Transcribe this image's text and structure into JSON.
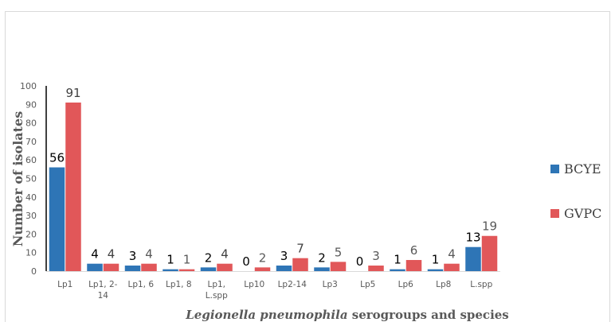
{
  "chart_data": {
    "type": "bar",
    "categories": [
      "Lp1",
      "Lp1, 2-14",
      "Lp1, 6",
      "Lp1, 8",
      "Lp1, L.spp",
      "Lp10",
      "Lp2-14",
      "Lp3",
      "Lp5",
      "Lp6",
      "Lp8",
      "L.spp"
    ],
    "category_lines": [
      [
        "Lp1"
      ],
      [
        "Lp1,  2-",
        "14"
      ],
      [
        "Lp1, 6"
      ],
      [
        "Lp1, 8"
      ],
      [
        "Lp1,",
        "L.spp"
      ],
      [
        "Lp10"
      ],
      [
        "Lp2-14"
      ],
      [
        "Lp3"
      ],
      [
        "Lp5"
      ],
      [
        "Lp6"
      ],
      [
        "Lp8"
      ],
      [
        "L.spp"
      ]
    ],
    "series": [
      {
        "name": "BCYE",
        "color": "#2e75b6",
        "values": [
          56,
          4,
          3,
          1,
          2,
          0,
          3,
          2,
          0,
          1,
          1,
          13
        ]
      },
      {
        "name": "GVPC",
        "color": "#e15759",
        "values": [
          91,
          4,
          4,
          1,
          4,
          2,
          7,
          5,
          3,
          6,
          4,
          19
        ]
      }
    ],
    "data_label_colors": {
      "BCYE": [
        "#000000",
        "#000000",
        "#000000",
        "#000000",
        "#000000",
        "#000000",
        "#000000",
        "#000000",
        "#000000",
        "#000000",
        "#000000",
        "#000000"
      ],
      "GVPC": [
        "#404040",
        "#404040",
        "#595959",
        "#595959",
        "#404040",
        "#595959",
        "#404040",
        "#595959",
        "#595959",
        "#595959",
        "#595959",
        "#595959"
      ]
    },
    "ylabel": "Number of isolates",
    "xlabel_italic": "Legionella pneumophila",
    "xlabel_rest": " serogroups and species",
    "ylim": [
      0,
      100
    ],
    "yticks": [
      0,
      10,
      20,
      30,
      40,
      50,
      60,
      70,
      80,
      90,
      100
    ],
    "grid": false,
    "legend_position": "right"
  }
}
